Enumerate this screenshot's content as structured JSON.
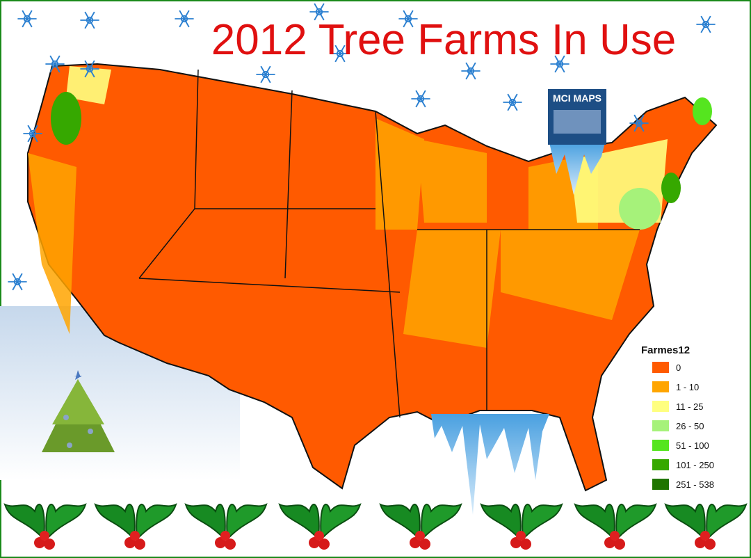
{
  "title": "2012 Tree Farms In Use",
  "logo": {
    "text": "MCI MAPS"
  },
  "legend": {
    "title": "Farmes12",
    "items": [
      {
        "label": "0",
        "color": "#ff5a00"
      },
      {
        "label": "1 - 10",
        "color": "#ffa500"
      },
      {
        "label": "11 - 25",
        "color": "#ffff80"
      },
      {
        "label": "26 - 50",
        "color": "#a6f27a"
      },
      {
        "label": "51 - 100",
        "color": "#55e51f"
      },
      {
        "label": "101 - 250",
        "color": "#36a800"
      },
      {
        "label": "251 - 538",
        "color": "#1f7500"
      }
    ]
  }
}
